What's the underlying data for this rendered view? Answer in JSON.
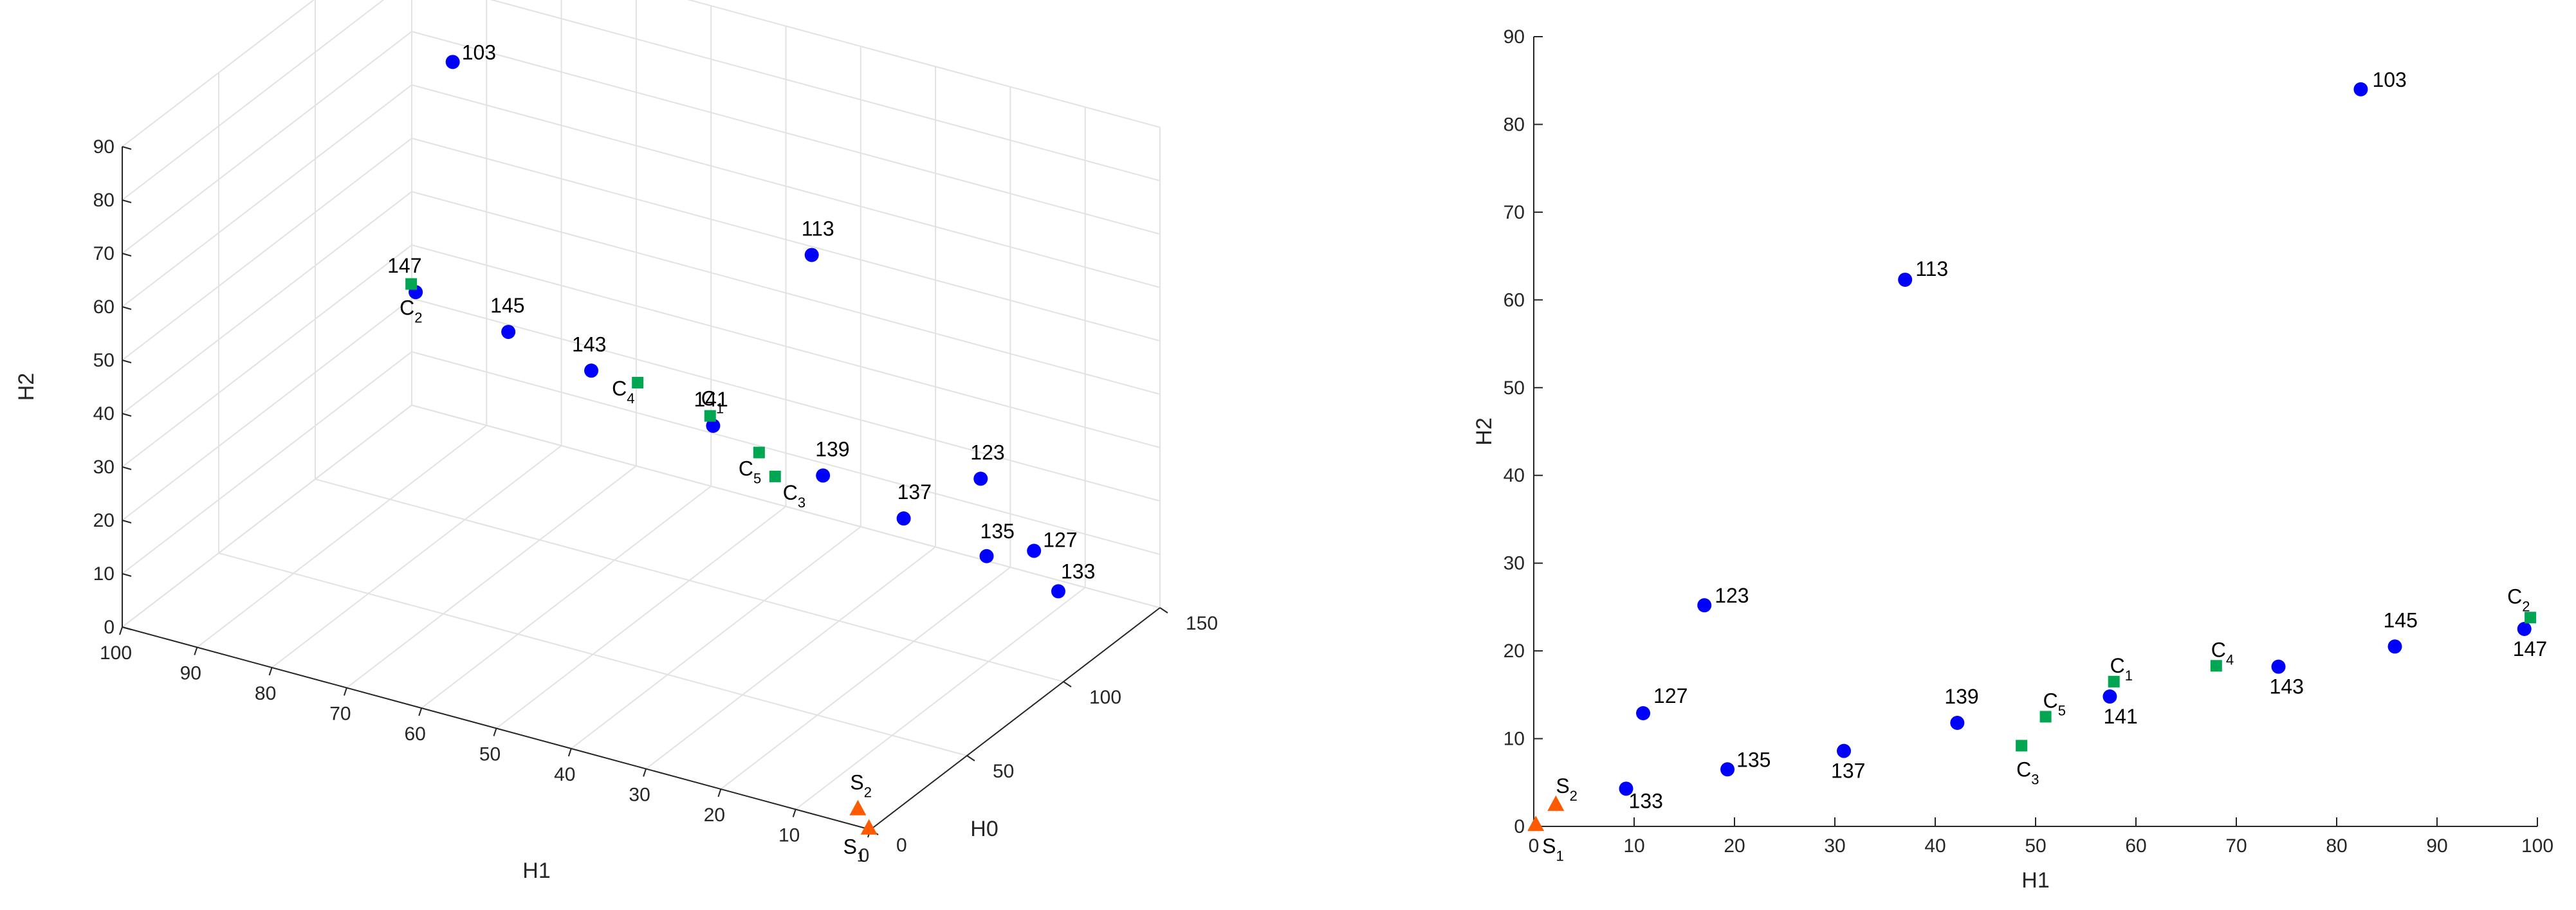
{
  "chart_data": [
    {
      "type": "scatter",
      "view": "3d",
      "xlabel": "H1",
      "ylabel": "H0",
      "zlabel": "H2",
      "xlim": [
        0,
        100
      ],
      "ylim": [
        0,
        150
      ],
      "zlim": [
        0,
        90
      ],
      "xticks": [
        0,
        10,
        20,
        30,
        40,
        50,
        60,
        70,
        80,
        90,
        100
      ],
      "yticks": [
        0,
        50,
        100,
        150
      ],
      "zticks": [
        0,
        10,
        20,
        30,
        40,
        50,
        60,
        70,
        80,
        90
      ],
      "grid": true,
      "series": [
        {
          "marker": "circle",
          "color": "#0000ff",
          "points": [
            {
              "label": "103",
              "h1": 82.4,
              "h0": 103,
              "h2": 84
            },
            {
              "label": "113",
              "h1": 37,
              "h0": 113,
              "h2": 62.3
            },
            {
              "label": "123",
              "h1": 17,
              "h0": 123,
              "h2": 25.2
            },
            {
              "label": "127",
              "h1": 10.9,
              "h0": 127,
              "h2": 12.9
            },
            {
              "label": "133",
              "h1": 9.2,
              "h0": 133,
              "h2": 4.3
            },
            {
              "label": "135",
              "h1": 19.3,
              "h0": 135,
              "h2": 6.5
            },
            {
              "label": "137",
              "h1": 30.9,
              "h0": 137,
              "h2": 8.6
            },
            {
              "label": "139",
              "h1": 42.2,
              "h0": 139,
              "h2": 11.8
            },
            {
              "label": "141",
              "h1": 57.4,
              "h0": 141,
              "h2": 14.8
            },
            {
              "label": "143",
              "h1": 74.2,
              "h0": 143,
              "h2": 18.2
            },
            {
              "label": "145",
              "h1": 85.8,
              "h0": 145,
              "h2": 20.5
            },
            {
              "label": "147",
              "h1": 98.7,
              "h0": 147,
              "h2": 22.5
            }
          ]
        },
        {
          "marker": "square",
          "color": "#00a651",
          "points": [
            {
              "label": "C",
              "sub": "1",
              "h1": 57.8,
              "h0": 141,
              "h2": 16.5
            },
            {
              "label": "C",
              "sub": "2",
              "h1": 99.3,
              "h0": 147,
              "h2": 23.8
            },
            {
              "label": "C",
              "sub": "3",
              "h1": 48.6,
              "h0": 139,
              "h2": 9.2
            },
            {
              "label": "C",
              "sub": "4",
              "h1": 68,
              "h0": 143,
              "h2": 18.3
            },
            {
              "label": "C",
              "sub": "5",
              "h1": 51,
              "h0": 140,
              "h2": 12.5
            }
          ]
        },
        {
          "marker": "triangle",
          "color": "#ff5a00",
          "points": [
            {
              "label": "S",
              "sub": "1",
              "h1": 0.2,
              "h0": 0,
              "h2": 0.2
            },
            {
              "label": "S",
              "sub": "2",
              "h1": 2.2,
              "h0": 2,
              "h2": 2.5
            }
          ]
        }
      ]
    },
    {
      "type": "scatter",
      "view": "2d",
      "xlabel": "H1",
      "ylabel": "H2",
      "xlim": [
        0,
        100
      ],
      "ylim": [
        0,
        90
      ],
      "xticks": [
        0,
        10,
        20,
        30,
        40,
        50,
        60,
        70,
        80,
        90,
        100
      ],
      "yticks": [
        0,
        10,
        20,
        30,
        40,
        50,
        60,
        70,
        80,
        90
      ],
      "grid": false,
      "uses_series_of_3d": true
    }
  ]
}
